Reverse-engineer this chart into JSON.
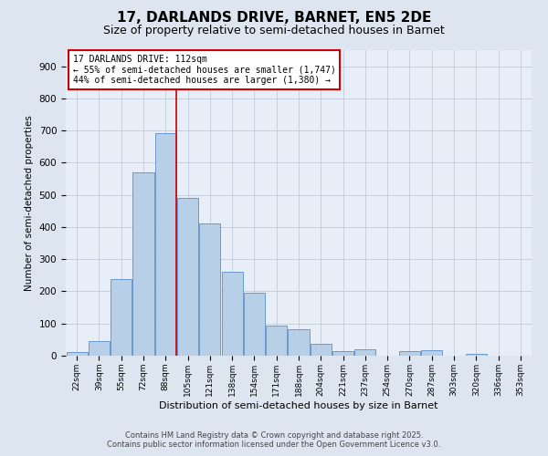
{
  "title": "17, DARLANDS DRIVE, BARNET, EN5 2DE",
  "subtitle": "Size of property relative to semi-detached houses in Barnet",
  "xlabel": "Distribution of semi-detached houses by size in Barnet",
  "ylabel": "Number of semi-detached properties",
  "categories": [
    "22sqm",
    "39sqm",
    "55sqm",
    "72sqm",
    "88sqm",
    "105sqm",
    "121sqm",
    "138sqm",
    "154sqm",
    "171sqm",
    "188sqm",
    "204sqm",
    "221sqm",
    "237sqm",
    "254sqm",
    "270sqm",
    "287sqm",
    "303sqm",
    "320sqm",
    "336sqm",
    "353sqm"
  ],
  "values": [
    10,
    45,
    237,
    570,
    692,
    492,
    410,
    262,
    196,
    93,
    83,
    38,
    15,
    21,
    0,
    13,
    16,
    0,
    5,
    0,
    0
  ],
  "bar_color": "#b8cfe8",
  "bar_edge_color": "#5b8fc9",
  "annotation_title": "17 DARLANDS DRIVE: 112sqm",
  "annotation_line1": "← 55% of semi-detached houses are smaller (1,747)",
  "annotation_line2": "44% of semi-detached houses are larger (1,380) →",
  "vline_position": 4.5,
  "vline_color": "#cc0000",
  "ylim": [
    0,
    950
  ],
  "yticks": [
    0,
    100,
    200,
    300,
    400,
    500,
    600,
    700,
    800,
    900
  ],
  "footer_line1": "Contains HM Land Registry data © Crown copyright and database right 2025.",
  "footer_line2": "Contains public sector information licensed under the Open Government Licence v3.0.",
  "bg_color": "#dde6f0",
  "plot_bg_color": "#e8eef8",
  "title_fontsize": 11,
  "subtitle_fontsize": 9,
  "annotation_box_color": "#ffffff",
  "annotation_box_edge": "#cc0000",
  "grid_color": "#c0cad8"
}
